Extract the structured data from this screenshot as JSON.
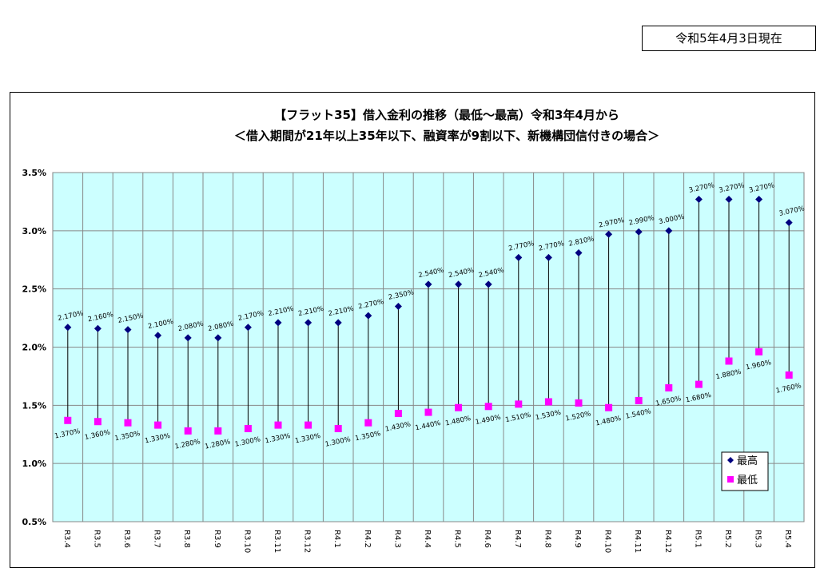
{
  "header": {
    "date_text": "令和5年4月3日現在"
  },
  "chart_data": {
    "type": "line",
    "title_line1": "【フラット35】借入金利の推移（最低～最高）令和3年4月から",
    "title_line2": "＜借入期間が21年以上35年以下、融資率が9割以下、新機構団信付きの場合＞",
    "categories": [
      "R3.4",
      "R3.5",
      "R3.6",
      "R3.7",
      "R3.8",
      "R3.9",
      "R3.10",
      "R3.11",
      "R3.12",
      "R4.1",
      "R4.2",
      "R4.3",
      "R4.4",
      "R4.5",
      "R4.6",
      "R4.7",
      "R4.8",
      "R4.9",
      "R4.10",
      "R4.11",
      "R4.12",
      "R5.1",
      "R5.2",
      "R5.3",
      "R5.4"
    ],
    "series": [
      {
        "name": "最高",
        "color": "#000080",
        "marker": "diamond",
        "values": [
          2.17,
          2.16,
          2.15,
          2.1,
          2.08,
          2.08,
          2.17,
          2.21,
          2.21,
          2.21,
          2.27,
          2.35,
          2.54,
          2.54,
          2.54,
          2.77,
          2.77,
          2.81,
          2.97,
          2.99,
          3.0,
          3.27,
          3.27,
          3.27,
          3.07
        ],
        "labels": [
          "2.170%",
          "2.160%",
          "2.150%",
          "2.100%",
          "2.080%",
          "2.080%",
          "2.170%",
          "2.210%",
          "2.210%",
          "2.210%",
          "2.270%",
          "2.350%",
          "2.540%",
          "2.540%",
          "2.540%",
          "2.770%",
          "2.770%",
          "2.810%",
          "2.970%",
          "2.990%",
          "3.000%",
          "3.270%",
          "3.270%",
          "3.270%",
          "3.070%"
        ]
      },
      {
        "name": "最低",
        "color": "#ff00ff",
        "marker": "square",
        "values": [
          1.37,
          1.36,
          1.35,
          1.33,
          1.28,
          1.28,
          1.3,
          1.33,
          1.33,
          1.3,
          1.35,
          1.43,
          1.44,
          1.48,
          1.49,
          1.51,
          1.53,
          1.52,
          1.48,
          1.54,
          1.65,
          1.68,
          1.88,
          1.96,
          1.76
        ],
        "labels": [
          "1.370%",
          "1.360%",
          "1.350%",
          "1.330%",
          "1.280%",
          "1.280%",
          "1.300%",
          "1.330%",
          "1.330%",
          "1.300%",
          "1.350%",
          "1.430%",
          "1.440%",
          "1.480%",
          "1.490%",
          "1.510%",
          "1.530%",
          "1.520%",
          "1.480%",
          "1.540%",
          "1.650%",
          "1.680%",
          "1.880%",
          "1.960%",
          "1.760%"
        ]
      }
    ],
    "yaxis": {
      "min": 0.5,
      "max": 3.5,
      "ticks": [
        3.5,
        3.0,
        2.5,
        2.0,
        1.5,
        1.0,
        0.5
      ],
      "tick_labels": [
        "3.5%",
        "3.0%",
        "2.5%",
        "2.0%",
        "1.5%",
        "1.0%",
        "0.5%"
      ]
    },
    "grid": true,
    "plot_background": "#ccffff",
    "legend_position": "bottom-right"
  }
}
